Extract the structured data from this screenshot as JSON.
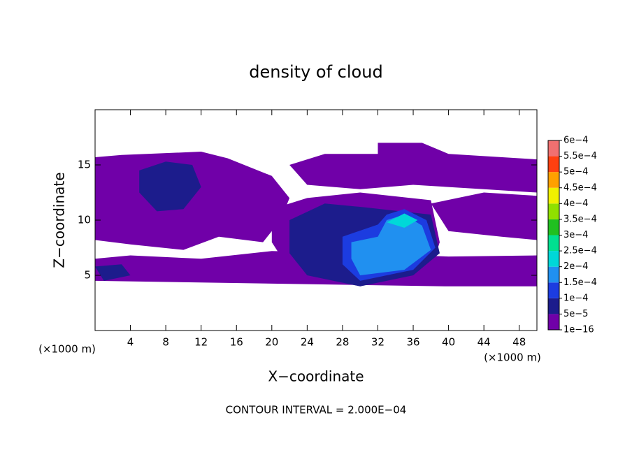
{
  "chart_data": {
    "type": "contour",
    "title": "density of cloud",
    "xlabel": "X−coordinate",
    "ylabel": "Z−coordinate",
    "xunit": "(×1000 m)",
    "yunit": "(×1000 m)",
    "note": "CONTOUR INTERVAL = 2.000E−04",
    "xlim": [
      0,
      50
    ],
    "ylim": [
      0,
      20
    ],
    "xticks": [
      4,
      8,
      12,
      16,
      20,
      24,
      28,
      32,
      36,
      40,
      44,
      48
    ],
    "yticks": [
      5,
      10,
      15
    ],
    "levels": [
      {
        "value": 1e-16,
        "label": "1e−16"
      },
      {
        "value": 5e-05,
        "label": "5e−5"
      },
      {
        "value": 0.0001,
        "label": "1e−4"
      },
      {
        "value": 0.00015,
        "label": "1.5e−4"
      },
      {
        "value": 0.0002,
        "label": "2e−4"
      },
      {
        "value": 0.00025,
        "label": "2.5e−4"
      },
      {
        "value": 0.0003,
        "label": "3e−4"
      },
      {
        "value": 0.00035,
        "label": "3.5e−4"
      },
      {
        "value": 0.0004,
        "label": "4e−4"
      },
      {
        "value": 0.00045,
        "label": "4.5e−4"
      },
      {
        "value": 0.0005,
        "label": "5e−4"
      },
      {
        "value": 0.00055,
        "label": "5.5e−4"
      },
      {
        "value": 0.0006,
        "label": "6e−4"
      }
    ],
    "colors": [
      "#7000a8",
      "#1c1c8c",
      "#1c3ce0",
      "#2090f0",
      "#00d8d8",
      "#00e090",
      "#20c020",
      "#90e000",
      "#f0f000",
      "#ffa000",
      "#ff4010",
      "#f07070"
    ],
    "regions": [
      {
        "value": 1e-16,
        "x": [
          0,
          3,
          12,
          15,
          20,
          22,
          21,
          19,
          14,
          10,
          4,
          0
        ],
        "z": [
          15.7,
          15.9,
          16.2,
          15.6,
          14,
          12,
          10,
          8,
          8.5,
          7.3,
          7.8,
          8.2
        ]
      },
      {
        "value": 1e-16,
        "x": [
          0,
          4,
          12,
          20,
          30,
          40,
          50,
          50,
          40,
          0
        ],
        "z": [
          6.5,
          6.8,
          6.5,
          7.2,
          7,
          6.7,
          6.8,
          4,
          4,
          4.5
        ]
      },
      {
        "value": 1e-16,
        "x": [
          20,
          24,
          30,
          38,
          39,
          38,
          30,
          22,
          20
        ],
        "z": [
          11,
          12,
          12.5,
          11.8,
          8,
          5.5,
          4,
          5.5,
          8
        ]
      },
      {
        "value": 1e-16,
        "x": [
          22,
          26,
          32,
          32,
          37,
          40,
          50,
          50,
          44,
          36,
          30,
          24
        ],
        "z": [
          15,
          16,
          16,
          17,
          17,
          16,
          15.5,
          12.5,
          12.8,
          13.2,
          12.8,
          13.2
        ]
      },
      {
        "value": 1e-16,
        "x": [
          38,
          44,
          50,
          50,
          46,
          40
        ],
        "z": [
          11.5,
          12.5,
          12.2,
          8.2,
          8.5,
          9
        ]
      },
      {
        "value": 5e-05,
        "x": [
          5,
          8,
          11,
          12,
          10,
          7,
          5
        ],
        "z": [
          14.5,
          15.3,
          15,
          13,
          11,
          10.8,
          12.5
        ]
      },
      {
        "value": 5e-05,
        "x": [
          0,
          3,
          4,
          1
        ],
        "z": [
          5.8,
          6,
          5,
          4.5
        ]
      },
      {
        "value": 5e-05,
        "x": [
          22,
          26,
          30,
          38,
          39,
          36,
          30,
          24,
          22
        ],
        "z": [
          10,
          11.5,
          11.2,
          10.5,
          7,
          5,
          4,
          5,
          7
        ]
      },
      {
        "value": 0.0001,
        "x": [
          28,
          32,
          33,
          35,
          37.5,
          38.5,
          36,
          30,
          28
        ],
        "z": [
          8.5,
          9.6,
          10.5,
          11,
          10,
          7.5,
          5.5,
          4.5,
          6
        ]
      },
      {
        "value": 0.00015,
        "x": [
          29,
          32,
          33,
          35,
          37,
          38,
          35,
          30,
          29
        ],
        "z": [
          8,
          8.5,
          10,
          10.5,
          9.5,
          7.3,
          5.5,
          5,
          6.5
        ]
      },
      {
        "value": 0.0002,
        "x": [
          33,
          35,
          36.5,
          35
        ],
        "z": [
          9.8,
          10.6,
          10,
          9.3
        ]
      }
    ]
  }
}
